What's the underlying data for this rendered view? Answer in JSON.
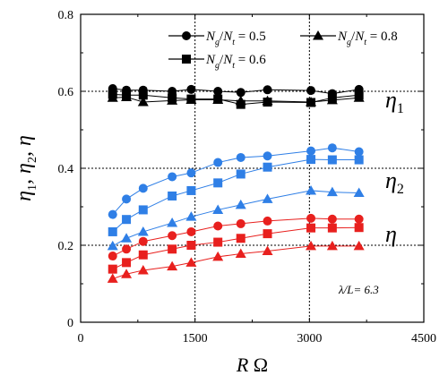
{
  "chart_data": {
    "type": "scatter",
    "xlabel": "R Ω",
    "ylabel": "η1, η2, η",
    "xlim": [
      0,
      4500
    ],
    "ylim": [
      0,
      0.8
    ],
    "x_ticks": [
      "0",
      "1500",
      "3000",
      "4500"
    ],
    "y_ticks": [
      "0",
      "0.2",
      "0.4",
      "0.6",
      "0.8"
    ],
    "grid": "dotted lines at x = 1500, 3000 and y = 0.2, 0.4, 0.6",
    "legend_position": "top",
    "legend": [
      {
        "label": "Ng/Nt = 0.5",
        "marker": "circle"
      },
      {
        "label": "Ng/Nt = 0.8",
        "marker": "triangle"
      },
      {
        "label": "Ng/Nt = 0.6",
        "marker": "square"
      }
    ],
    "annotations": {
      "eta1": "η1",
      "eta2": "η2",
      "eta": "η",
      "lambda": "λ/L= 6.3"
    },
    "colors": {
      "eta1": "#000000",
      "eta2": "#2f7fe6",
      "eta": "#e8201e"
    },
    "series": [
      {
        "group": "eta1",
        "marker": "circle",
        "x": [
          420,
          600,
          820,
          1200,
          1450,
          1800,
          2100,
          2450,
          3020,
          3300,
          3650
        ],
        "y": [
          0.607,
          0.603,
          0.603,
          0.6,
          0.605,
          0.6,
          0.597,
          0.604,
          0.602,
          0.594,
          0.605
        ]
      },
      {
        "group": "eta1",
        "marker": "square",
        "x": [
          420,
          600,
          820,
          1200,
          1450,
          1800,
          2100,
          2450,
          3020,
          3300,
          3650
        ],
        "y": [
          0.592,
          0.59,
          0.59,
          0.583,
          0.58,
          0.58,
          0.566,
          0.572,
          0.571,
          0.583,
          0.59
        ]
      },
      {
        "group": "eta1",
        "marker": "triangle",
        "x": [
          420,
          600,
          820,
          1200,
          1450,
          1800,
          2100,
          2450,
          3020,
          3300,
          3650
        ],
        "y": [
          0.583,
          0.585,
          0.572,
          0.576,
          0.578,
          0.578,
          0.575,
          0.575,
          0.572,
          0.577,
          0.583
        ]
      },
      {
        "group": "eta2",
        "marker": "circle",
        "x": [
          420,
          600,
          820,
          1200,
          1450,
          1800,
          2100,
          2450,
          3020,
          3300,
          3650
        ],
        "y": [
          0.28,
          0.32,
          0.348,
          0.378,
          0.388,
          0.415,
          0.428,
          0.432,
          0.445,
          0.453,
          0.443
        ]
      },
      {
        "group": "eta2",
        "marker": "square",
        "x": [
          420,
          600,
          820,
          1200,
          1450,
          1800,
          2100,
          2450,
          3020,
          3300,
          3650
        ],
        "y": [
          0.235,
          0.267,
          0.292,
          0.328,
          0.342,
          0.362,
          0.385,
          0.403,
          0.423,
          0.422,
          0.422
        ]
      },
      {
        "group": "eta2",
        "marker": "triangle",
        "x": [
          420,
          600,
          820,
          1200,
          1450,
          1800,
          2100,
          2450,
          3020,
          3300,
          3650
        ],
        "y": [
          0.198,
          0.218,
          0.235,
          0.258,
          0.274,
          0.292,
          0.305,
          0.32,
          0.342,
          0.338,
          0.336
        ]
      },
      {
        "group": "eta",
        "marker": "circle",
        "x": [
          420,
          600,
          820,
          1200,
          1450,
          1800,
          2100,
          2450,
          3020,
          3300,
          3650
        ],
        "y": [
          0.172,
          0.19,
          0.21,
          0.225,
          0.235,
          0.25,
          0.256,
          0.263,
          0.27,
          0.268,
          0.268
        ]
      },
      {
        "group": "eta",
        "marker": "square",
        "x": [
          420,
          600,
          820,
          1200,
          1450,
          1800,
          2100,
          2450,
          3020,
          3300,
          3650
        ],
        "y": [
          0.138,
          0.155,
          0.175,
          0.19,
          0.2,
          0.208,
          0.218,
          0.23,
          0.245,
          0.245,
          0.246
        ]
      },
      {
        "group": "eta",
        "marker": "triangle",
        "x": [
          420,
          600,
          820,
          1200,
          1450,
          1800,
          2100,
          2450,
          3020,
          3300,
          3650
        ],
        "y": [
          0.113,
          0.125,
          0.135,
          0.145,
          0.155,
          0.17,
          0.178,
          0.185,
          0.198,
          0.198,
          0.198
        ]
      }
    ]
  }
}
